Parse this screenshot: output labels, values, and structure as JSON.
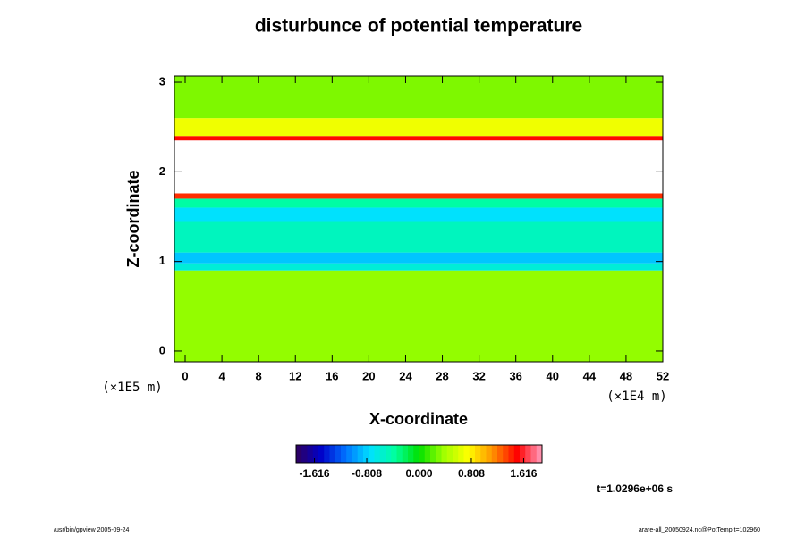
{
  "chart_data": {
    "type": "heatmap",
    "title": "disturbunce of potential temperature",
    "x_label": "X-coordinate",
    "y_label": "Z-coordinate",
    "x_unit": "(×1E4 m)",
    "y_unit": "(×1E5 m)",
    "time_label": "t=1.0296e+06 s",
    "footer_left": "/usr/bin/gpview 2005-09-24",
    "footer_right": "arare-all_20050924.nc@PotTemp,t=102960",
    "xlim": [
      -1.17,
      52
    ],
    "xticks": [
      0,
      4,
      8,
      12,
      16,
      20,
      24,
      28,
      32,
      36,
      40,
      44,
      48,
      52
    ],
    "ylim": [
      -0.12,
      3.07
    ],
    "yticks": [
      0,
      1,
      2,
      3
    ],
    "z_edges": [
      -0.12,
      0.9,
      0.98,
      1.1,
      1.45,
      1.6,
      1.7,
      1.76,
      1.82,
      2.35,
      2.4,
      2.6,
      3.07
    ],
    "values": [
      0.35,
      -0.6,
      -0.85,
      -0.5,
      -0.75,
      -0.4,
      1.4,
      2.5,
      2.5,
      1.5,
      0.7,
      0.3
    ],
    "clim": [
      -1.9,
      1.9
    ],
    "colorbar_ticks": [
      -1.616,
      -0.808,
      {
        "value": 0,
        "label": "0.000"
      },
      0.808,
      1.616
    ],
    "colormap": [
      "#30005a",
      "#0000c8",
      "#0070ff",
      "#00e0ff",
      "#00ffa0",
      "#00e000",
      "#a0ff00",
      "#ffff00",
      "#ff9000",
      "#ff0000",
      "#ffa0c0"
    ],
    "over_color": "#ffffff"
  }
}
